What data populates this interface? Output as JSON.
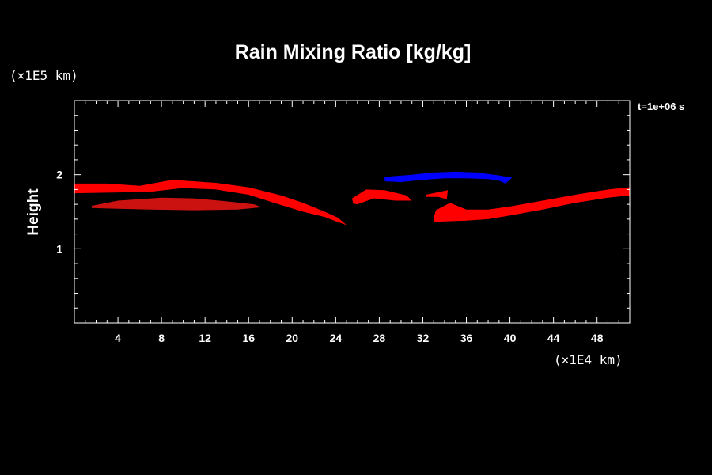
{
  "chart_data": {
    "type": "area",
    "title": "Rain Mixing Ratio [kg/kg]",
    "ylabel": "Height",
    "y_unit": "(×1E5 km)",
    "x_unit": "(×1E4 km)",
    "time_label": "t=1e+06 s",
    "xlim": [
      0,
      51
    ],
    "ylim": [
      0,
      3
    ],
    "x_ticks": [
      "4",
      "8",
      "12",
      "16",
      "20",
      "24",
      "28",
      "32",
      "36",
      "40",
      "44",
      "48"
    ],
    "y_ticks": [
      "1",
      "2"
    ],
    "colors": {
      "background": "#000000",
      "frame": "#ffffff",
      "red": "#ff0000",
      "dark_red": "#cc1111",
      "blue": "#0000ff"
    },
    "series": [
      {
        "color": "#ff0000",
        "points": [
          [
            0,
            1.88
          ],
          [
            3,
            1.88
          ],
          [
            6,
            1.85
          ],
          [
            9,
            1.93
          ],
          [
            13,
            1.89
          ],
          [
            16,
            1.83
          ],
          [
            19,
            1.72
          ],
          [
            21,
            1.62
          ],
          [
            23,
            1.5
          ],
          [
            24.2,
            1.42
          ],
          [
            25,
            1.32
          ],
          [
            24.2,
            1.36
          ],
          [
            23,
            1.43
          ],
          [
            21,
            1.5
          ],
          [
            19,
            1.59
          ],
          [
            16,
            1.73
          ],
          [
            13,
            1.8
          ],
          [
            10,
            1.82
          ],
          [
            7,
            1.77
          ],
          [
            4,
            1.76
          ],
          [
            0,
            1.75
          ]
        ]
      },
      {
        "color": "#cc1111",
        "points": [
          [
            1.6,
            1.58
          ],
          [
            4,
            1.65
          ],
          [
            8,
            1.69
          ],
          [
            11,
            1.68
          ],
          [
            14,
            1.64
          ],
          [
            16.5,
            1.6
          ],
          [
            17.2,
            1.56
          ],
          [
            15,
            1.53
          ],
          [
            11,
            1.52
          ],
          [
            7,
            1.53
          ],
          [
            4,
            1.54
          ],
          [
            1.6,
            1.55
          ]
        ]
      },
      {
        "color": "#ff0000",
        "points": [
          [
            25.5,
            1.68
          ],
          [
            26.8,
            1.8
          ],
          [
            28.5,
            1.79
          ],
          [
            30.5,
            1.72
          ],
          [
            31,
            1.65
          ],
          [
            29.5,
            1.65
          ],
          [
            27.5,
            1.68
          ],
          [
            26,
            1.6
          ],
          [
            25.6,
            1.61
          ]
        ]
      },
      {
        "color": "#ff0000",
        "points": [
          [
            32.3,
            1.73
          ],
          [
            34.3,
            1.79
          ],
          [
            34.2,
            1.67
          ],
          [
            33.4,
            1.7
          ],
          [
            32.3,
            1.7
          ]
        ]
      },
      {
        "color": "#ff0000",
        "points": [
          [
            33,
            1.42
          ],
          [
            33.2,
            1.52
          ],
          [
            34.5,
            1.62
          ],
          [
            36,
            1.53
          ],
          [
            38,
            1.53
          ],
          [
            40,
            1.57
          ],
          [
            43,
            1.65
          ],
          [
            46,
            1.73
          ],
          [
            49,
            1.8
          ],
          [
            51,
            1.83
          ],
          [
            51,
            1.72
          ],
          [
            49,
            1.69
          ],
          [
            46,
            1.62
          ],
          [
            43,
            1.53
          ],
          [
            40,
            1.45
          ],
          [
            38,
            1.4
          ],
          [
            36,
            1.38
          ],
          [
            34,
            1.37
          ],
          [
            33,
            1.36
          ]
        ]
      },
      {
        "color": "#0000ff",
        "points": [
          [
            28.5,
            1.97
          ],
          [
            31,
            2.0
          ],
          [
            33,
            2.03
          ],
          [
            35,
            2.04
          ],
          [
            37,
            2.03
          ],
          [
            39,
            1.99
          ],
          [
            40.2,
            1.96
          ],
          [
            39.6,
            1.88
          ],
          [
            39,
            1.92
          ],
          [
            38,
            1.94
          ],
          [
            36,
            1.95
          ],
          [
            34,
            1.95
          ],
          [
            32,
            1.93
          ],
          [
            30,
            1.9
          ],
          [
            28.5,
            1.91
          ]
        ]
      }
    ]
  }
}
